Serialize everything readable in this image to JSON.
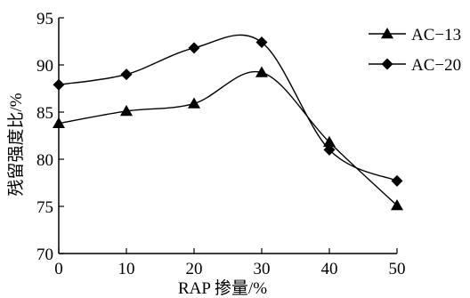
{
  "chart_data": {
    "type": "line",
    "title": "",
    "xlabel": "RAP 掺量/%",
    "ylabel": "残留强度比/%",
    "x": [
      0,
      10,
      20,
      30,
      40,
      50
    ],
    "xlim": [
      0,
      50
    ],
    "ylim": [
      70,
      95
    ],
    "xticks": [
      "0",
      "10",
      "20",
      "30",
      "40",
      "50"
    ],
    "yticks": [
      "70",
      "75",
      "80",
      "85",
      "90",
      "95"
    ],
    "grid": false,
    "legend": "top-right",
    "series": [
      {
        "name": "AC−13",
        "marker": "triangle",
        "color": "#000000",
        "values": [
          83.8,
          85.1,
          85.9,
          89.2,
          81.8,
          75.1
        ]
      },
      {
        "name": "AC−20",
        "marker": "diamond",
        "color": "#000000",
        "values": [
          87.9,
          89.0,
          91.8,
          92.4,
          81.0,
          77.7
        ]
      }
    ]
  }
}
